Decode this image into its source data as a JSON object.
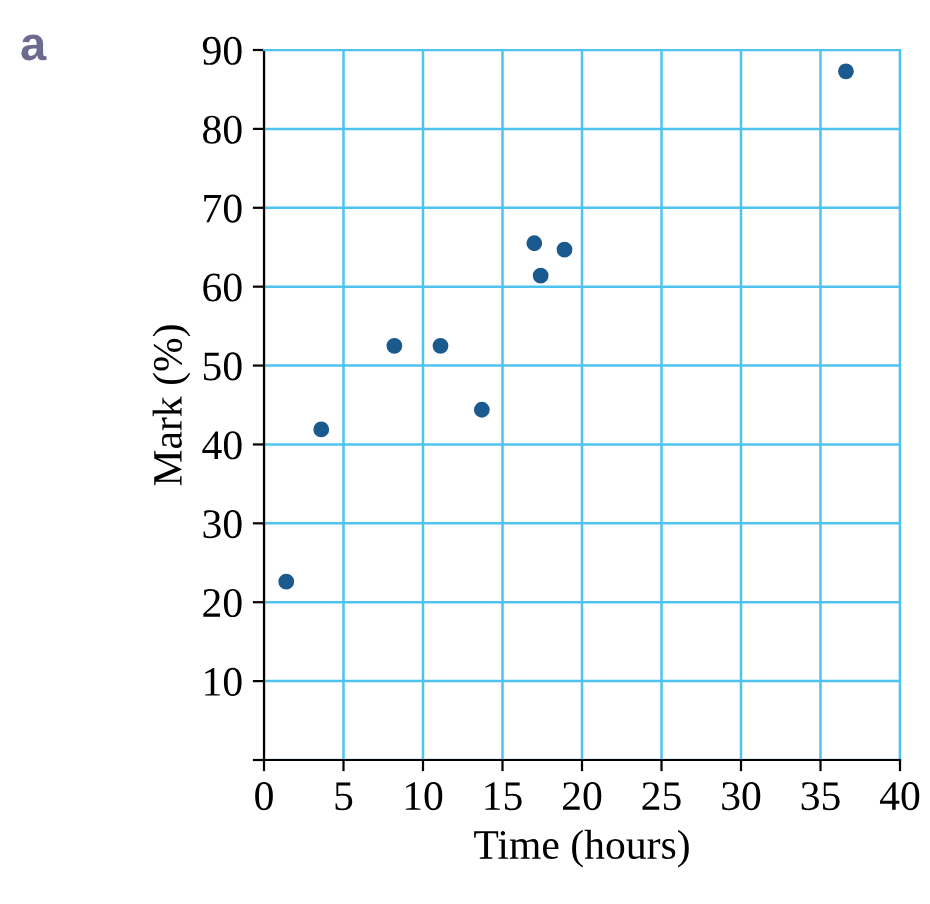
{
  "chart_data": {
    "type": "scatter",
    "xlabel": "Time (hours)",
    "ylabel": "Mark (%)",
    "annotations": [
      "a"
    ],
    "x": [
      1.4,
      3.6,
      8.2,
      11.1,
      13.7,
      17.0,
      17.4,
      18.9,
      36.6
    ],
    "series": [
      {
        "color": "#1b5a8e",
        "values": [
          22.6,
          41.9,
          52.5,
          52.5,
          44.4,
          65.5,
          61.4,
          64.7,
          87.3
        ]
      }
    ],
    "xlim": [
      0,
      40
    ],
    "ylim": [
      0,
      90
    ],
    "xticks": [
      {
        "value": 0,
        "label": "0"
      },
      5,
      10,
      15,
      20,
      25,
      30,
      35,
      40
    ],
    "yticks": [
      {
        "value": 0,
        "label": null
      },
      10,
      20,
      30,
      40,
      50,
      60,
      70,
      80,
      90
    ],
    "grid": true,
    "marker": "circle",
    "legend": false
  }
}
